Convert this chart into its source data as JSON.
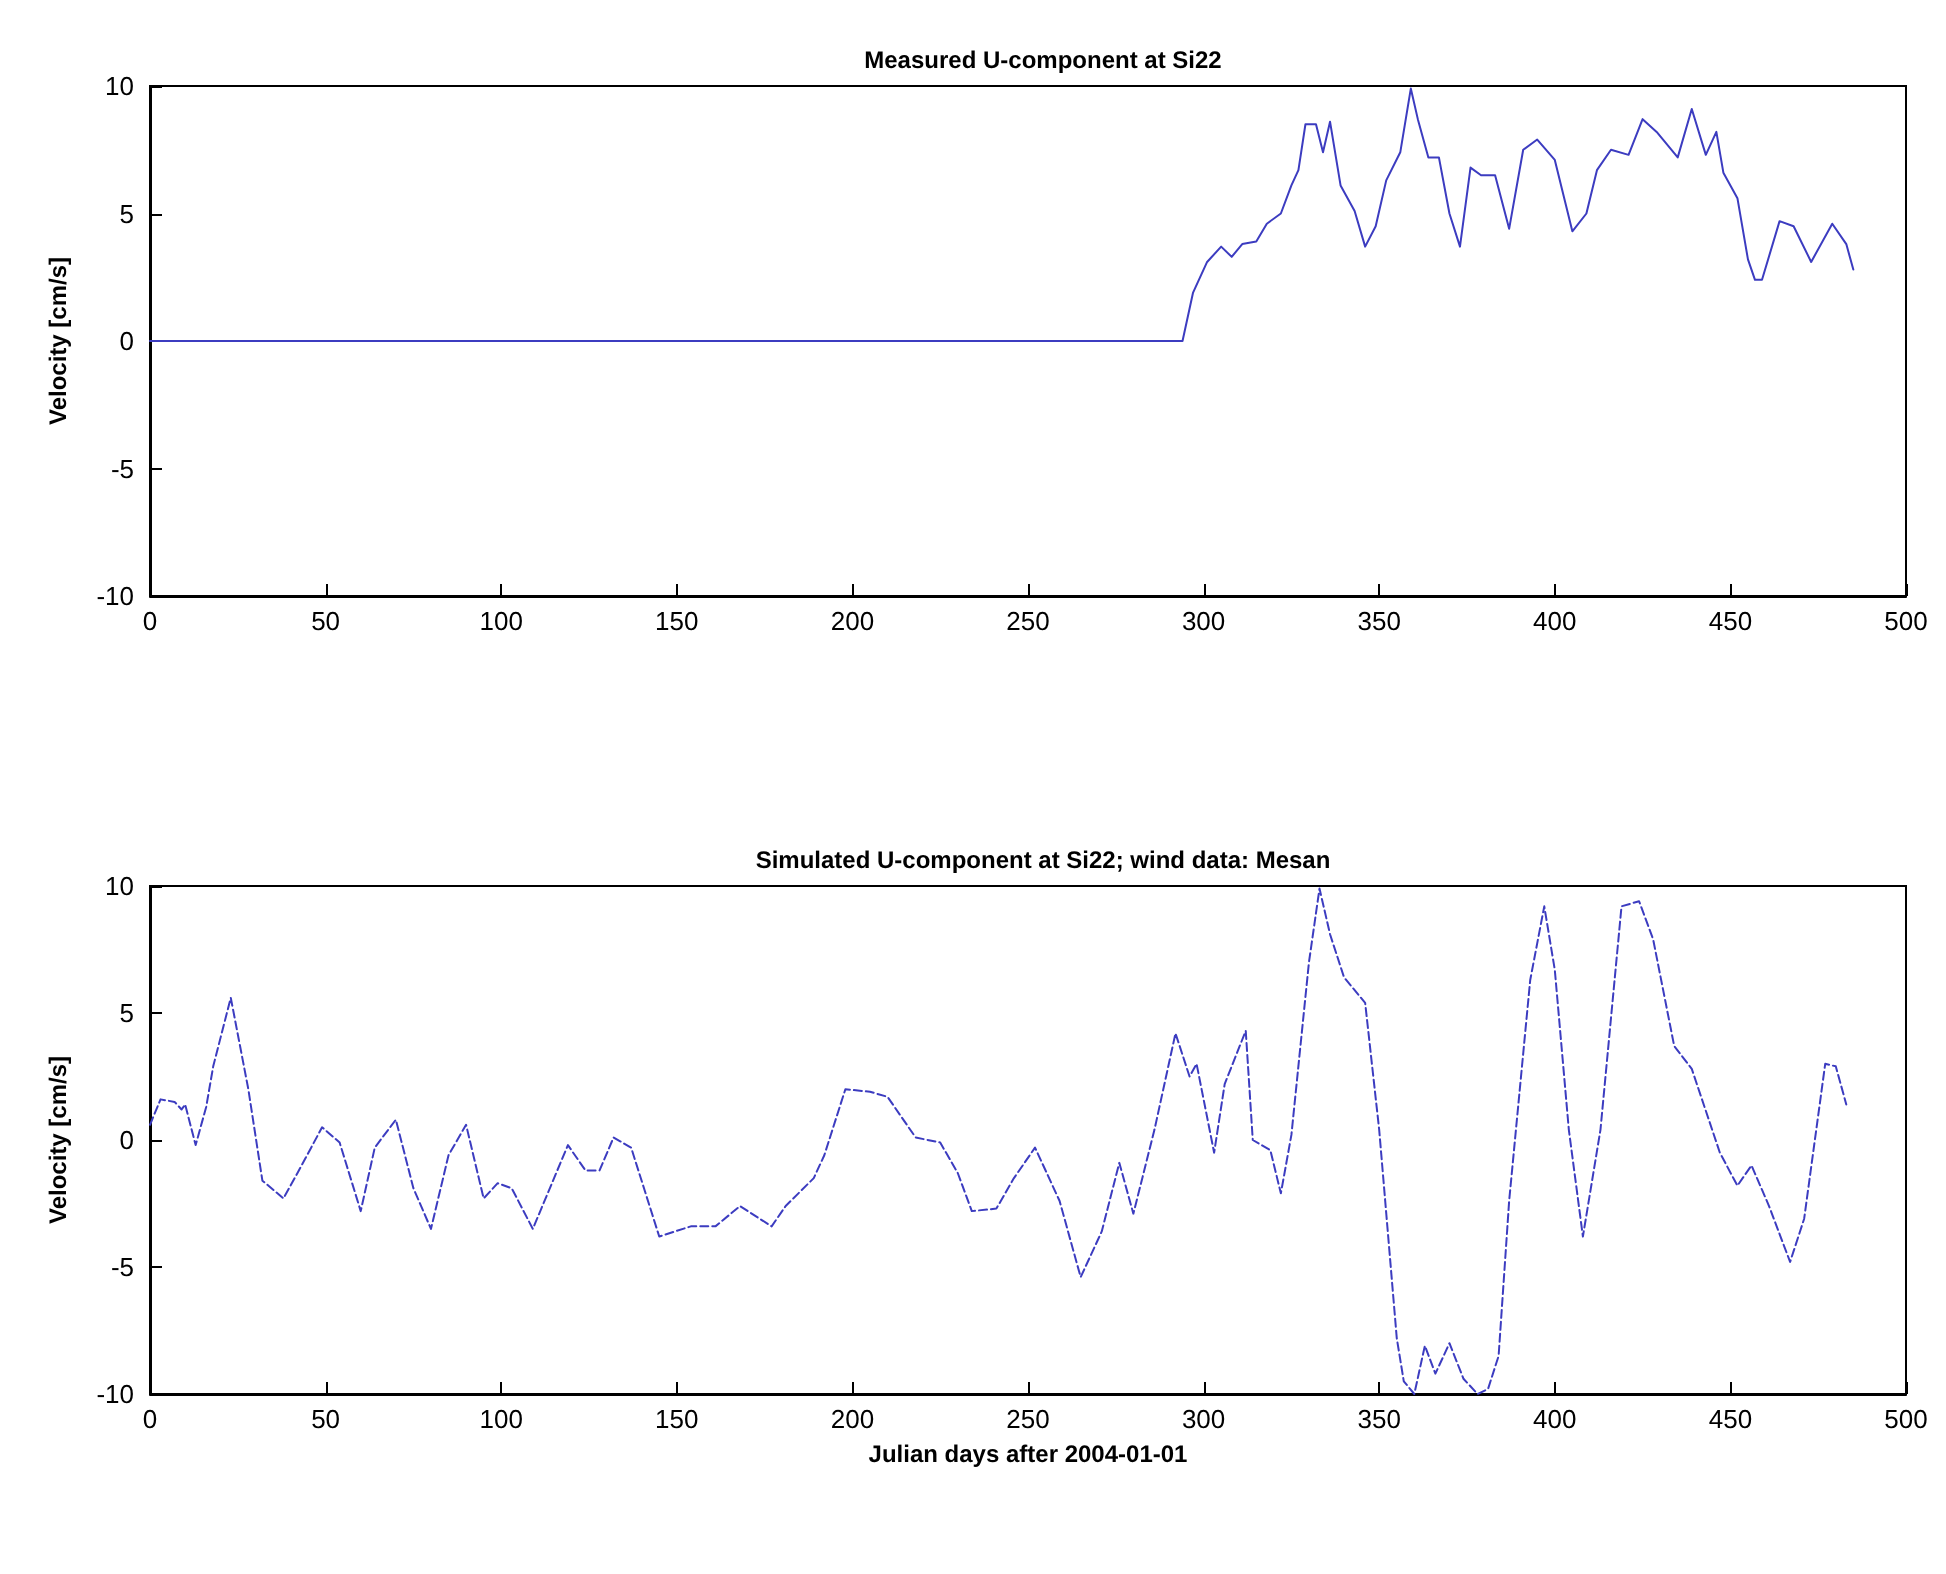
{
  "chart_data": [
    {
      "type": "line",
      "title": "Measured U-component at Si22",
      "ylabel": "Velocity [cm/s]",
      "xlim": [
        0,
        500
      ],
      "ylim": [
        -10,
        10
      ],
      "xticks": [
        0,
        50,
        100,
        150,
        200,
        250,
        300,
        350,
        400,
        450,
        500
      ],
      "yticks": [
        -10,
        -5,
        0,
        5,
        10
      ],
      "marker": "none",
      "line_style": "solid",
      "series": [
        {
          "color": "#3c3cc0",
          "x": [
            0,
            294,
            297,
            301,
            305,
            308,
            311,
            315,
            318,
            322,
            325,
            327,
            329,
            332,
            334,
            336,
            339,
            343,
            346,
            349,
            352,
            356,
            359,
            361,
            364,
            367,
            370,
            373,
            376,
            379,
            383,
            387,
            391,
            395,
            400,
            405,
            409,
            412,
            416,
            421,
            425,
            429,
            435,
            439,
            443,
            446,
            448,
            452,
            455,
            457,
            459,
            464,
            468,
            473,
            479,
            483,
            485
          ],
          "values": [
            0,
            0,
            1.9,
            3.1,
            3.7,
            3.3,
            3.8,
            3.9,
            4.6,
            5.0,
            6.1,
            6.7,
            8.5,
            8.5,
            7.4,
            8.6,
            6.1,
            5.1,
            3.7,
            4.5,
            6.3,
            7.4,
            9.9,
            8.7,
            7.2,
            7.2,
            5.0,
            3.7,
            6.8,
            6.5,
            6.5,
            4.4,
            7.5,
            7.9,
            7.1,
            4.3,
            5.0,
            6.7,
            7.5,
            7.3,
            8.7,
            8.2,
            7.2,
            9.1,
            7.3,
            8.2,
            6.6,
            5.6,
            3.2,
            2.4,
            2.4,
            4.7,
            4.5,
            3.1,
            4.6,
            3.8,
            2.8
          ]
        }
      ]
    },
    {
      "type": "line",
      "title": "Simulated U-component at Si22; wind data: Mesan",
      "xlabel": "Julian days after 2004-01-01",
      "ylabel": "Velocity [cm/s]",
      "xlim": [
        0,
        500
      ],
      "ylim": [
        -10,
        10
      ],
      "xticks": [
        0,
        50,
        100,
        150,
        200,
        250,
        300,
        350,
        400,
        450,
        500
      ],
      "yticks": [
        -10,
        -5,
        0,
        5,
        10
      ],
      "marker": "none",
      "line_style": "dashed",
      "series": [
        {
          "color": "#3c3cc0",
          "x": [
            0,
            3,
            7,
            9,
            10,
            13,
            16,
            18,
            23,
            28,
            32,
            38,
            42,
            49,
            54,
            60,
            64,
            70,
            75,
            80,
            85,
            90,
            95,
            99,
            103,
            109,
            119,
            124,
            128,
            132,
            137,
            145,
            154,
            161,
            168,
            177,
            181,
            189,
            192,
            198,
            205,
            210,
            218,
            225,
            230,
            234,
            241,
            246,
            252,
            259,
            265,
            271,
            276,
            280,
            286,
            292,
            296,
            298,
            303,
            306,
            312,
            314,
            319,
            322,
            325,
            330,
            333,
            336,
            340,
            346,
            350,
            355,
            357,
            360,
            363,
            366,
            370,
            374,
            378,
            381,
            384,
            387,
            393,
            397,
            400,
            404,
            408,
            413,
            419,
            424,
            428,
            434,
            439,
            447,
            452,
            456,
            461,
            467,
            471,
            477,
            480,
            483
          ],
          "values": [
            0.6,
            1.6,
            1.5,
            1.2,
            1.4,
            -0.2,
            1.3,
            2.9,
            5.6,
            2.0,
            -1.6,
            -2.3,
            -1.3,
            0.5,
            -0.1,
            -2.8,
            -0.3,
            0.8,
            -1.9,
            -3.5,
            -0.6,
            0.6,
            -2.3,
            -1.7,
            -1.9,
            -3.5,
            -0.2,
            -1.2,
            -1.2,
            0.1,
            -0.3,
            -3.8,
            -3.4,
            -3.4,
            -2.6,
            -3.4,
            -2.6,
            -1.5,
            -0.6,
            2.0,
            1.9,
            1.7,
            0.1,
            -0.1,
            -1.3,
            -2.8,
            -2.7,
            -1.5,
            -0.3,
            -2.4,
            -5.4,
            -3.6,
            -0.9,
            -2.9,
            0.4,
            4.2,
            2.5,
            3.0,
            -0.5,
            2.2,
            4.3,
            0,
            -0.4,
            -2.1,
            0.2,
            7.0,
            9.9,
            8.1,
            6.4,
            5.4,
            0.4,
            -7.8,
            -9.5,
            -10,
            -8.1,
            -9.2,
            -8.0,
            -9.4,
            -10,
            -9.8,
            -8.5,
            -2.4,
            6.3,
            9.2,
            6.7,
            0.4,
            -3.8,
            0.4,
            9.2,
            9.4,
            7.9,
            3.7,
            2.8,
            -0.5,
            -1.8,
            -1.0,
            -2.6,
            -4.8,
            -3.1,
            3.0,
            2.9,
            1.4
          ]
        }
      ]
    }
  ]
}
